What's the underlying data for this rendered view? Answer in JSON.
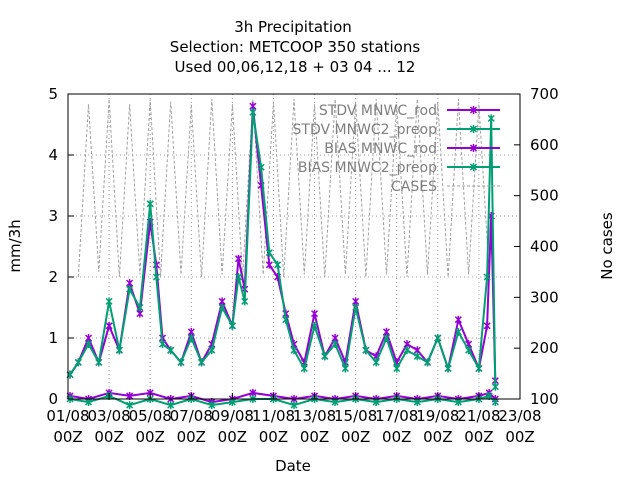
{
  "chart_data": {
    "type": "line",
    "title": [
      "3h Precipitation",
      "Selection: METCOOP    350 stations",
      "Used  00,06,12,18 + 03 04 ... 12"
    ],
    "xlabel": "Date",
    "ylabel": "mm/3h",
    "y2label": "No cases",
    "ylim": [
      0,
      5
    ],
    "y2lim": [
      100,
      700
    ],
    "yticks": [
      "0",
      "1",
      "2",
      "3",
      "4",
      "5"
    ],
    "y2ticks": [
      "100",
      "200",
      "300",
      "400",
      "500",
      "600",
      "700"
    ],
    "xticks": [
      {
        "date": "01/08",
        "time": "00Z"
      },
      {
        "date": "03/08",
        "time": "00Z"
      },
      {
        "date": "05/08",
        "time": "00Z"
      },
      {
        "date": "07/08",
        "time": "00Z"
      },
      {
        "date": "09/08",
        "time": "00Z"
      },
      {
        "date": "11/08",
        "time": "00Z"
      },
      {
        "date": "13/08",
        "time": "00Z"
      },
      {
        "date": "15/08",
        "time": "00Z"
      },
      {
        "date": "17/08",
        "time": "00Z"
      },
      {
        "date": "19/08",
        "time": "00Z"
      },
      {
        "date": "21/08",
        "time": "00Z"
      },
      {
        "date": "23/08",
        "time": "00Z"
      }
    ],
    "x_range_days": [
      0,
      22
    ],
    "grid": true,
    "legend_position": "top-right",
    "series": [
      {
        "name": "STDV MNWC_rod",
        "color": "#9400d3",
        "axis": "y1",
        "x": [
          0.1,
          0.5,
          1.0,
          1.5,
          2.0,
          2.5,
          3.0,
          3.5,
          4.0,
          4.3,
          4.6,
          5.0,
          5.5,
          6.0,
          6.5,
          7.0,
          7.5,
          8.0,
          8.3,
          8.6,
          9.0,
          9.4,
          9.8,
          10.2,
          10.6,
          11.0,
          11.5,
          12.0,
          12.5,
          13.0,
          13.5,
          14.0,
          14.5,
          15.0,
          15.5,
          16.0,
          16.5,
          17.0,
          17.5,
          18.0,
          18.5,
          19.0,
          19.5,
          20.0,
          20.4,
          20.6,
          20.8
        ],
        "y": [
          0.4,
          0.6,
          1.0,
          0.6,
          1.2,
          0.8,
          1.9,
          1.4,
          2.9,
          2.2,
          1.0,
          0.8,
          0.6,
          1.1,
          0.6,
          0.9,
          1.6,
          1.2,
          2.3,
          1.8,
          4.8,
          3.5,
          2.2,
          2.0,
          1.4,
          0.9,
          0.6,
          1.4,
          0.7,
          1.0,
          0.6,
          1.6,
          0.8,
          0.7,
          1.1,
          0.6,
          0.9,
          0.8,
          0.6,
          1.0,
          0.5,
          1.3,
          0.9,
          0.5,
          1.2,
          3.0,
          0.3
        ]
      },
      {
        "name": "STDV MNWC2_preop",
        "color": "#009e73",
        "axis": "y1",
        "x": [
          0.1,
          0.5,
          1.0,
          1.5,
          2.0,
          2.5,
          3.0,
          3.5,
          4.0,
          4.3,
          4.6,
          5.0,
          5.5,
          6.0,
          6.5,
          7.0,
          7.5,
          8.0,
          8.3,
          8.6,
          9.0,
          9.4,
          9.8,
          10.2,
          10.6,
          11.0,
          11.5,
          12.0,
          12.5,
          13.0,
          13.5,
          14.0,
          14.5,
          15.0,
          15.5,
          16.0,
          16.5,
          17.0,
          17.5,
          18.0,
          18.5,
          19.0,
          19.5,
          20.0,
          20.4,
          20.6,
          20.8
        ],
        "y": [
          0.4,
          0.6,
          0.9,
          0.6,
          1.6,
          0.8,
          1.8,
          1.5,
          3.2,
          2.0,
          0.9,
          0.8,
          0.6,
          1.0,
          0.6,
          0.8,
          1.5,
          1.2,
          2.0,
          1.6,
          4.7,
          3.8,
          2.4,
          2.2,
          1.3,
          0.8,
          0.5,
          1.2,
          0.7,
          0.9,
          0.5,
          1.5,
          0.8,
          0.6,
          1.0,
          0.5,
          0.8,
          0.7,
          0.6,
          1.0,
          0.5,
          1.1,
          0.8,
          0.5,
          2.0,
          4.6,
          0.2
        ]
      },
      {
        "name": "BIAS MNWC_rod",
        "color": "#9400d3",
        "axis": "y1",
        "x": [
          0.1,
          1.0,
          2.0,
          3.0,
          4.0,
          5.0,
          6.0,
          7.0,
          8.0,
          9.0,
          10.0,
          11.0,
          12.0,
          13.0,
          14.0,
          15.0,
          16.0,
          17.0,
          18.0,
          19.0,
          20.0,
          20.5,
          20.8
        ],
        "y": [
          0.05,
          0.0,
          0.1,
          0.05,
          0.1,
          0.0,
          0.05,
          -0.05,
          0.0,
          0.1,
          0.05,
          0.0,
          0.05,
          0.0,
          0.05,
          0.0,
          0.05,
          0.0,
          0.05,
          0.0,
          0.05,
          0.1,
          0.0
        ]
      },
      {
        "name": "BIAS MNWC2_preop",
        "color": "#009e73",
        "axis": "y1",
        "x": [
          0.1,
          1.0,
          2.0,
          3.0,
          4.0,
          5.0,
          6.0,
          7.0,
          8.0,
          9.0,
          10.0,
          11.0,
          12.0,
          13.0,
          14.0,
          15.0,
          16.0,
          17.0,
          18.0,
          19.0,
          20.0,
          20.5,
          20.8
        ],
        "y": [
          0.0,
          -0.05,
          0.05,
          -0.1,
          0.0,
          -0.1,
          0.0,
          -0.1,
          -0.05,
          0.0,
          0.0,
          -0.1,
          0.0,
          -0.05,
          0.0,
          -0.05,
          0.0,
          -0.05,
          0.0,
          -0.05,
          0.0,
          0.05,
          -0.05
        ]
      },
      {
        "name": "CASES",
        "color": "#a0a0a0",
        "axis": "y2",
        "style": "dashed",
        "x": [
          0.5,
          1.0,
          1.5,
          2.0,
          2.5,
          3.0,
          3.5,
          4.0,
          4.5,
          5.0,
          5.5,
          6.0,
          6.5,
          7.0,
          7.5,
          8.0,
          8.5,
          9.0,
          9.5,
          10.0,
          10.5,
          11.0,
          11.5,
          12.0,
          12.5,
          13.0,
          13.5,
          14.0,
          14.5,
          15.0,
          15.5,
          16.0,
          16.5,
          17.0,
          17.5,
          18.0,
          18.5,
          19.0,
          19.5,
          20.0,
          20.5
        ],
        "y": [
          340,
          680,
          350,
          690,
          340,
          680,
          345,
          690,
          340,
          685,
          345,
          680,
          340,
          690,
          345,
          680,
          340,
          690,
          345,
          685,
          340,
          690,
          345,
          680,
          340,
          690,
          345,
          685,
          340,
          690,
          345,
          680,
          340,
          690,
          345,
          685,
          340,
          690,
          345,
          680,
          345
        ]
      }
    ]
  }
}
